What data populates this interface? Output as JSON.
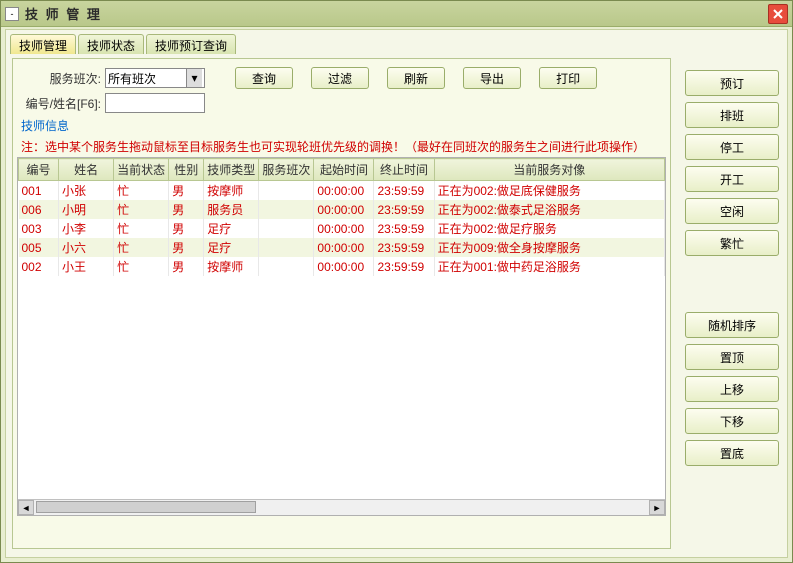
{
  "window": {
    "title": "技 师 管 理"
  },
  "tabs": [
    {
      "label": "技师管理",
      "active": true
    },
    {
      "label": "技师状态",
      "active": false
    },
    {
      "label": "技师预订查询",
      "active": false
    }
  ],
  "form": {
    "shift_label": "服务班次:",
    "shift_value": "所有班次",
    "id_label": "编号/姓名[F6]:",
    "id_value": ""
  },
  "toolbar": {
    "query": "查询",
    "filter": "过滤",
    "refresh": "刷新",
    "export": "导出",
    "print": "打印"
  },
  "fieldset_label": "技师信息",
  "note": "注：选中某个服务生拖动鼠标至目标服务生也可实现轮班优先级的调换！（最好在同班次的服务生之间进行此项操作）",
  "columns": {
    "id": "编号",
    "name": "姓名",
    "state": "当前状态",
    "gender": "性别",
    "type": "技师类型",
    "shift": "服务班次",
    "start": "起始时间",
    "end": "终止时间",
    "serving": "当前服务对像"
  },
  "col_widths": {
    "id": 40,
    "name": 55,
    "state": 55,
    "gender": 35,
    "type": 55,
    "shift": 55,
    "start": 60,
    "end": 60,
    "serving": 230
  },
  "rows": [
    {
      "id": "001",
      "name": "小张",
      "state": "忙",
      "gender": "男",
      "type": "按摩师",
      "shift": "",
      "start": "00:00:00",
      "end": "23:59:59",
      "serving": "正在为002:做足底保健服务"
    },
    {
      "id": "006",
      "name": "小明",
      "state": "忙",
      "gender": "男",
      "type": "服务员",
      "shift": "",
      "start": "00:00:00",
      "end": "23:59:59",
      "serving": "正在为002:做泰式足浴服务"
    },
    {
      "id": "003",
      "name": "小李",
      "state": "忙",
      "gender": "男",
      "type": "足疗",
      "shift": "",
      "start": "00:00:00",
      "end": "23:59:59",
      "serving": "正在为002:做足疗服务"
    },
    {
      "id": "005",
      "name": "小六",
      "state": "忙",
      "gender": "男",
      "type": "足疗",
      "shift": "",
      "start": "00:00:00",
      "end": "23:59:59",
      "serving": "正在为009:做全身按摩服务"
    },
    {
      "id": "002",
      "name": "小王",
      "state": "忙",
      "gender": "男",
      "type": "按摩师",
      "shift": "",
      "start": "00:00:00",
      "end": "23:59:59",
      "serving": "正在为001:做中药足浴服务"
    }
  ],
  "sidebar": {
    "reserve": "预订",
    "schedule": "排班",
    "stop": "停工",
    "start": "开工",
    "idle": "空闲",
    "busy": "繁忙",
    "shuffle": "随机排序",
    "top": "置顶",
    "up": "上移",
    "down": "下移",
    "bottom": "置底"
  }
}
